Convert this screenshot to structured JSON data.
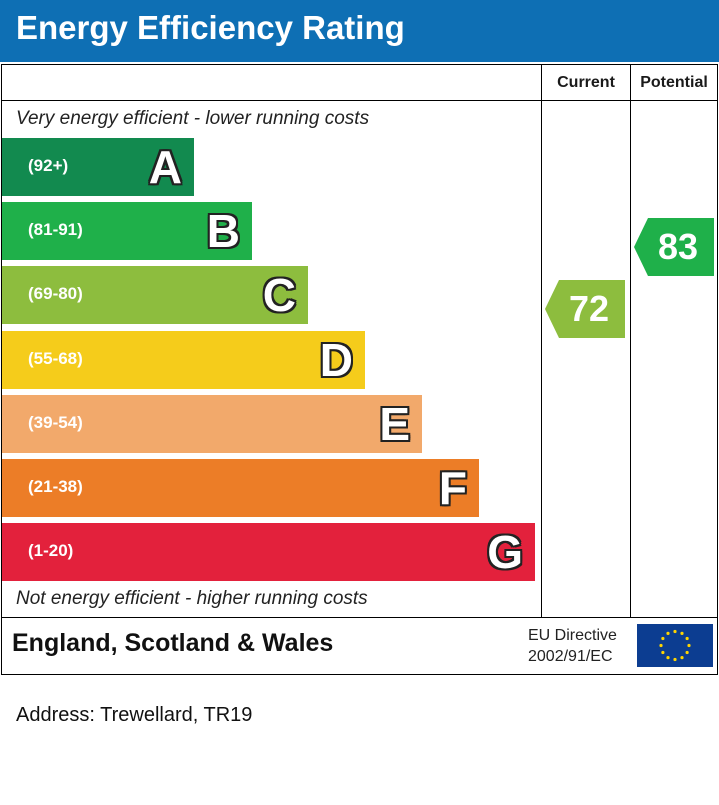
{
  "header": {
    "title": "Energy Efficiency Rating",
    "color": "#0e6fb4"
  },
  "columns": {
    "current": "Current",
    "potential": "Potential"
  },
  "captions": {
    "top": "Very energy efficient - lower running costs",
    "bottom": "Not energy efficient - higher running costs"
  },
  "bands": [
    {
      "letter": "A",
      "range": "(92+)",
      "color": "#128a4f"
    },
    {
      "letter": "B",
      "range": "(81-91)",
      "color": "#1fb04a"
    },
    {
      "letter": "C",
      "range": "(69-80)",
      "color": "#8dbd3e"
    },
    {
      "letter": "D",
      "range": "(55-68)",
      "color": "#f5cc1b"
    },
    {
      "letter": "E",
      "range": "(39-54)",
      "color": "#f2a96b"
    },
    {
      "letter": "F",
      "range": "(21-38)",
      "color": "#ec7d27"
    },
    {
      "letter": "G",
      "range": "(1-20)",
      "color": "#e3213c"
    }
  ],
  "ratings": {
    "current": {
      "value": "72",
      "band": "C",
      "color": "#8dbd3e"
    },
    "potential": {
      "value": "83",
      "band": "B",
      "color": "#1fb04a"
    }
  },
  "footer": {
    "region": "England, Scotland & Wales",
    "directive_line1": "EU Directive",
    "directive_line2": "2002/91/EC",
    "flag_icon": "eu-flag-icon"
  },
  "address": "Address: Trewellard, TR19"
}
